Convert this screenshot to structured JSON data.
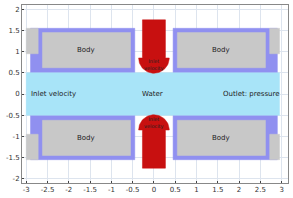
{
  "chart_data": {
    "type": "geometry",
    "xlim": [
      -3.1,
      3.15
    ],
    "ylim": [
      -2.1,
      2.1
    ],
    "xticks": [
      -3,
      -2.5,
      -2,
      -1.5,
      -1,
      -0.5,
      0,
      0.5,
      1,
      1.5,
      2,
      2.5,
      3
    ],
    "yticks": [
      -2,
      -1.5,
      -1,
      -0.5,
      0,
      0.5,
      1,
      1.5,
      2
    ],
    "grid": true,
    "regions": [
      {
        "color": "#9090f0",
        "rect": [
          -2.9,
          -0.45,
          0.5,
          1.55
        ]
      },
      {
        "color": "#9090f0",
        "rect": [
          0.45,
          2.9,
          0.5,
          1.55
        ]
      },
      {
        "color": "#9090f0",
        "rect": [
          -2.9,
          -0.45,
          -1.55,
          -0.5
        ]
      },
      {
        "color": "#9090f0",
        "rect": [
          0.45,
          2.9,
          -1.55,
          -0.5
        ]
      },
      {
        "color": "#c8c8c8",
        "rect": [
          -3,
          -2.72,
          0.95,
          1.55
        ]
      },
      {
        "color": "#c8c8c8",
        "rect": [
          2.72,
          2.95,
          0.95,
          1.55
        ]
      },
      {
        "color": "#c8c8c8",
        "rect": [
          -3,
          -2.72,
          -1.55,
          -0.95
        ]
      },
      {
        "color": "#c8c8c8",
        "rect": [
          2.72,
          2.95,
          -1.55,
          -0.95
        ]
      },
      {
        "color": "#c8c8c8",
        "rect": [
          -2.62,
          -0.55,
          0.62,
          1.45
        ],
        "label": "Body"
      },
      {
        "color": "#c8c8c8",
        "rect": [
          0.55,
          2.62,
          0.62,
          1.45
        ],
        "label": "Body"
      },
      {
        "color": "#c8c8c8",
        "rect": [
          -2.62,
          -0.55,
          -1.45,
          -0.62
        ],
        "label": "Body"
      },
      {
        "color": "#c8c8c8",
        "rect": [
          0.55,
          2.62,
          -1.45,
          -0.62
        ],
        "label": "Body"
      },
      {
        "color": "#a8e4f8",
        "rect": [
          -3,
          2.95,
          -0.5,
          0.5
        ],
        "label": "Water"
      },
      {
        "color": "#c81010",
        "rect": [
          -0.27,
          0.27,
          0.85,
          1.75
        ],
        "cap": {
          "cy": 0.85,
          "r": 0.36,
          "side": "down"
        },
        "label": "Inlet velocity"
      },
      {
        "color": "#c81010",
        "rect": [
          -0.27,
          0.27,
          -1.75,
          -0.85
        ],
        "cap": {
          "cy": -0.85,
          "r": 0.36,
          "side": "up"
        },
        "label": "Inlet velocity"
      }
    ],
    "annotations": [
      {
        "text": "Inlet velocity",
        "x": -2.35,
        "y": 0
      },
      {
        "text": "Outlet: pressure",
        "x": 2.3,
        "y": 0
      }
    ]
  }
}
